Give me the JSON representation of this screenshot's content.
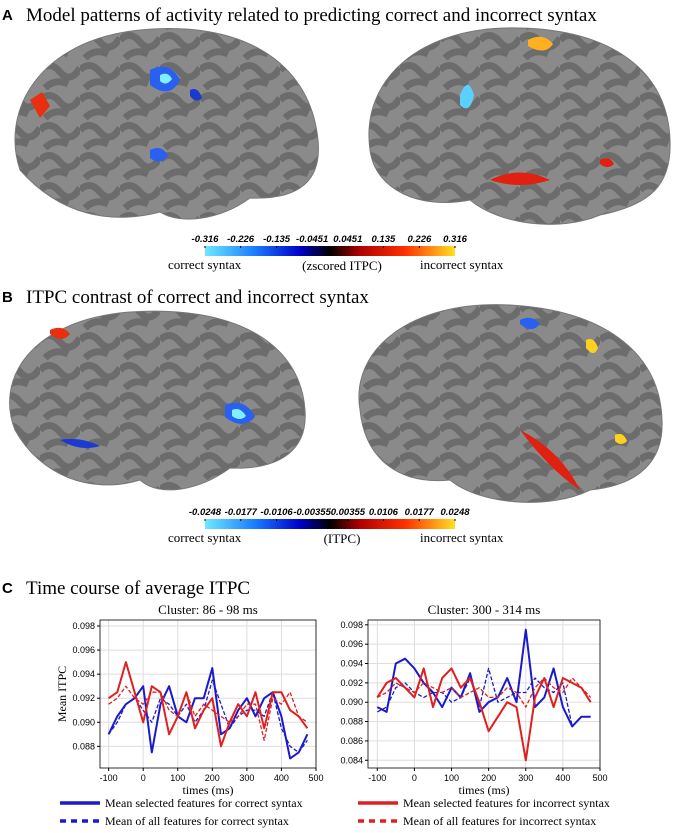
{
  "panels": [
    {
      "label": "A",
      "title": "Model patterns of activity related to predicting correct and incorrect syntax",
      "colorbar": {
        "lim": [
          -0.316,
          0.316
        ],
        "ticks": [
          -0.316,
          -0.226,
          -0.135,
          -0.0451,
          0.0451,
          0.135,
          0.226,
          0.316
        ],
        "left_label": "correct syntax",
        "center_label": "(zscored ITPC)",
        "right_label": "incorrect syntax"
      }
    },
    {
      "label": "B",
      "title": "ITPC contrast of correct and incorrect syntax",
      "colorbar": {
        "lim": [
          -0.0248,
          0.0248
        ],
        "ticks": [
          -0.0248,
          -0.0177,
          -0.0106,
          -0.00355,
          0.00355,
          0.0106,
          0.0177,
          0.0248
        ],
        "left_label": "correct syntax",
        "center_label": "(ITPC)",
        "right_label": "incorrect syntax"
      }
    },
    {
      "label": "C",
      "title": "Time course of average ITPC"
    }
  ],
  "chart_data": [
    {
      "type": "line",
      "title": "Cluster: 86 - 98 ms",
      "x_label": "times (ms)",
      "y_label": "Mean ITPC",
      "grid": true,
      "x": [
        -100,
        -75,
        -50,
        -25,
        0,
        25,
        50,
        75,
        100,
        125,
        150,
        175,
        200,
        225,
        250,
        275,
        300,
        325,
        350,
        375,
        400,
        425,
        450,
        475
      ],
      "xlim": [
        -125,
        500
      ],
      "xticks": [
        -100,
        0,
        100,
        200,
        300,
        400,
        500
      ],
      "ylim": [
        0.0862,
        0.0985
      ],
      "yticks": [
        {
          "value": 0.088,
          "label": "0.088"
        },
        {
          "value": 0.09,
          "label": "0.090"
        },
        {
          "value": 0.092,
          "label": "0.092"
        },
        {
          "value": 0.094,
          "label": "0.094"
        },
        {
          "value": 0.096,
          "label": "0.096"
        },
        {
          "value": 0.098,
          "label": "0.098"
        }
      ],
      "series": [
        {
          "name": "Mean selected features for correct syntax",
          "color": "#1a1acc",
          "linestyle": "solid",
          "values": [
            0.089,
            0.0905,
            0.0915,
            0.092,
            0.093,
            0.0875,
            0.0915,
            0.093,
            0.0905,
            0.09,
            0.092,
            0.092,
            0.0945,
            0.089,
            0.0895,
            0.091,
            0.092,
            0.0905,
            0.092,
            0.0925,
            0.0905,
            0.087,
            0.0875,
            0.089
          ]
        },
        {
          "name": "Mean of all features for correct syntax",
          "color": "#1a1acc",
          "linestyle": "dashed",
          "values": [
            0.089,
            0.09,
            0.0915,
            0.092,
            0.091,
            0.09,
            0.092,
            0.0915,
            0.0905,
            0.0915,
            0.09,
            0.091,
            0.0935,
            0.0915,
            0.0895,
            0.0905,
            0.091,
            0.091,
            0.0905,
            0.0925,
            0.0895,
            0.088,
            0.0875,
            0.0885
          ]
        },
        {
          "name": "Mean selected features for incorrect syntax",
          "color": "#e02020",
          "linestyle": "solid",
          "values": [
            0.092,
            0.0925,
            0.095,
            0.0925,
            0.09,
            0.093,
            0.0925,
            0.089,
            0.0905,
            0.0925,
            0.0895,
            0.091,
            0.092,
            0.088,
            0.09,
            0.0915,
            0.0905,
            0.0925,
            0.0895,
            0.0925,
            0.0925,
            0.091,
            0.0905,
            0.0895
          ]
        },
        {
          "name": "Mean of all features for incorrect syntax",
          "color": "#e02020",
          "linestyle": "dashed",
          "values": [
            0.0915,
            0.092,
            0.093,
            0.092,
            0.0915,
            0.0925,
            0.0925,
            0.091,
            0.0905,
            0.0925,
            0.0905,
            0.0915,
            0.091,
            0.0905,
            0.09,
            0.0905,
            0.0915,
            0.0915,
            0.0885,
            0.092,
            0.0915,
            0.0925,
            0.0905,
            0.09
          ]
        }
      ]
    },
    {
      "type": "line",
      "title": "Cluster: 300 - 314 ms",
      "x_label": "times (ms)",
      "grid": true,
      "x": [
        -100,
        -75,
        -50,
        -25,
        0,
        25,
        50,
        75,
        100,
        125,
        150,
        175,
        200,
        225,
        250,
        275,
        300,
        325,
        350,
        375,
        400,
        425,
        450,
        475
      ],
      "xlim": [
        -125,
        500
      ],
      "xticks": [
        -100,
        0,
        100,
        200,
        300,
        400,
        500
      ],
      "ylim": [
        0.0832,
        0.0985
      ],
      "yticks": [
        {
          "value": 0.084,
          "label": "0.084"
        },
        {
          "value": 0.086,
          "label": "0.086"
        },
        {
          "value": 0.088,
          "label": "0.088"
        },
        {
          "value": 0.09,
          "label": "0.090"
        },
        {
          "value": 0.092,
          "label": "0.092"
        },
        {
          "value": 0.094,
          "label": "0.094"
        },
        {
          "value": 0.096,
          "label": "0.096"
        },
        {
          "value": 0.098,
          "label": "0.098"
        }
      ],
      "series": [
        {
          "name": "Mean selected features for correct syntax",
          "color": "#1a1acc",
          "linestyle": "solid",
          "values": [
            0.0895,
            0.089,
            0.094,
            0.0945,
            0.0935,
            0.092,
            0.091,
            0.0895,
            0.0915,
            0.0905,
            0.093,
            0.089,
            0.09,
            0.0905,
            0.0925,
            0.09,
            0.0975,
            0.0895,
            0.0905,
            0.0935,
            0.0895,
            0.0875,
            0.0885,
            0.0885
          ]
        },
        {
          "name": "Mean of all features for correct syntax",
          "color": "#1a1acc",
          "linestyle": "dashed",
          "values": [
            0.089,
            0.0895,
            0.0915,
            0.092,
            0.091,
            0.0905,
            0.091,
            0.091,
            0.09,
            0.0905,
            0.0925,
            0.0895,
            0.0935,
            0.09,
            0.0905,
            0.091,
            0.091,
            0.0925,
            0.0915,
            0.091,
            0.092,
            0.0875,
            0.0885,
            0.0885
          ]
        },
        {
          "name": "Mean selected features for incorrect syntax",
          "color": "#e02020",
          "linestyle": "solid",
          "values": [
            0.0905,
            0.092,
            0.0925,
            0.0915,
            0.0905,
            0.0935,
            0.0895,
            0.0925,
            0.0935,
            0.0915,
            0.0925,
            0.09,
            0.087,
            0.0885,
            0.09,
            0.0895,
            0.084,
            0.0905,
            0.0925,
            0.0895,
            0.0925,
            0.092,
            0.0915,
            0.09
          ]
        },
        {
          "name": "Mean of all features for incorrect syntax",
          "color": "#e02020",
          "linestyle": "dashed",
          "values": [
            0.0905,
            0.091,
            0.092,
            0.0915,
            0.091,
            0.092,
            0.0915,
            0.091,
            0.0915,
            0.0905,
            0.091,
            0.0915,
            0.0905,
            0.0905,
            0.0915,
            0.091,
            0.0895,
            0.0915,
            0.0925,
            0.0915,
            0.091,
            0.0925,
            0.0915,
            0.0905
          ]
        }
      ]
    }
  ]
}
